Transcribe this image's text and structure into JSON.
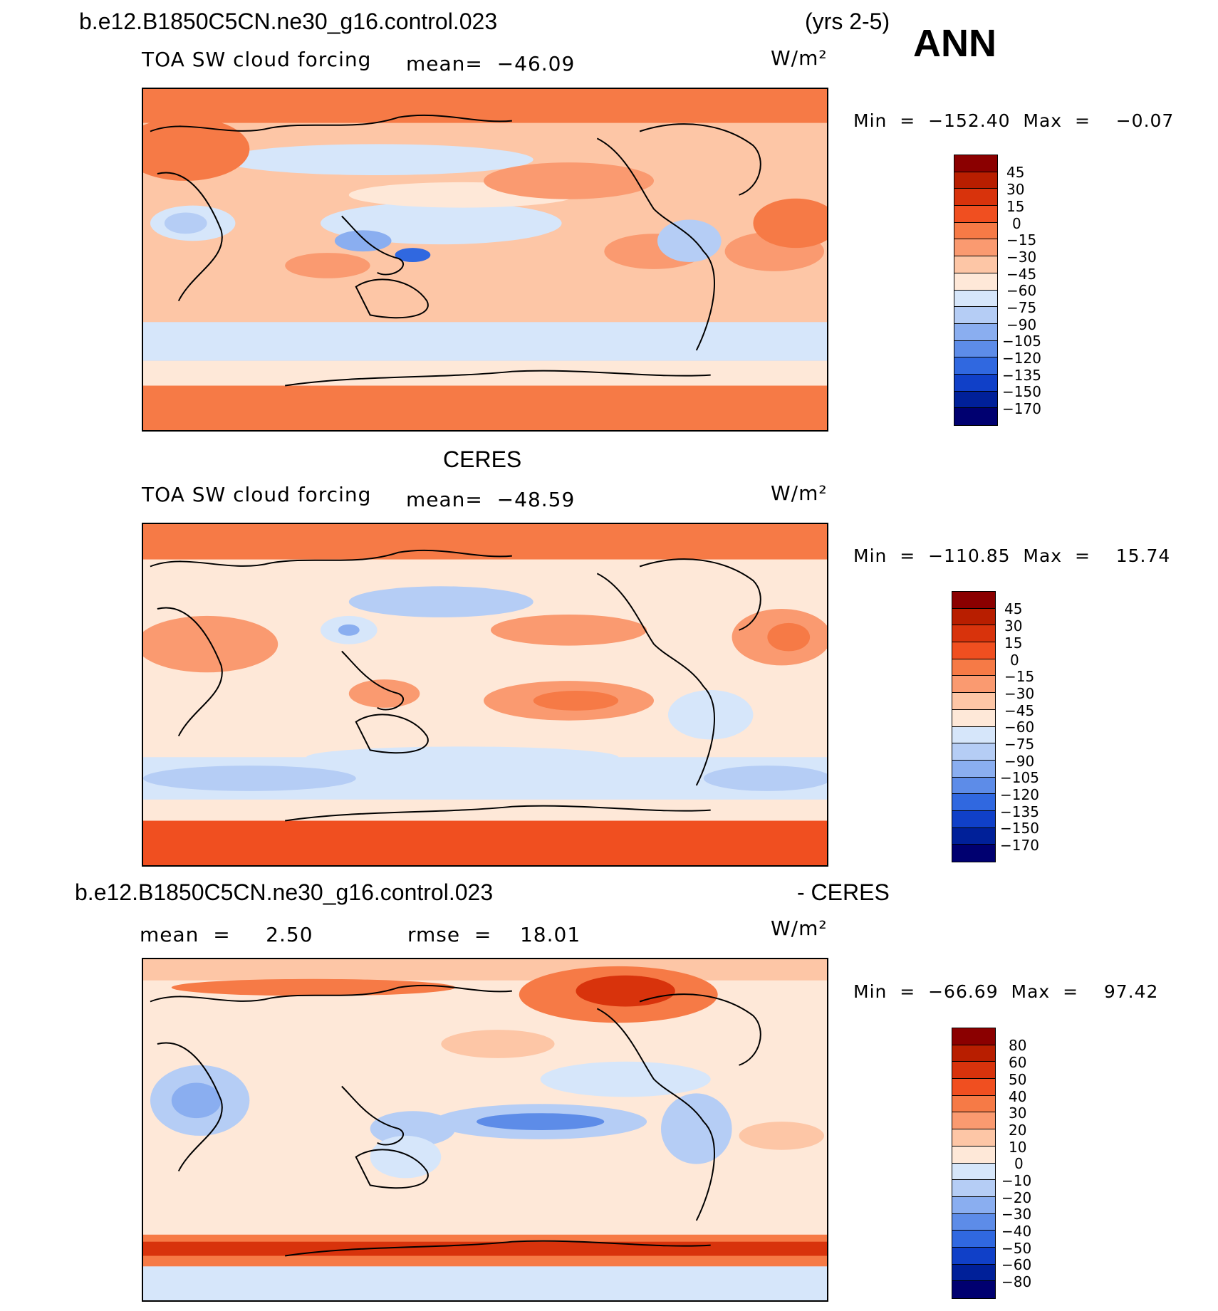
{
  "header": {
    "case_name": "b.e12.B1850C5CN.ne30_g16.control.023",
    "years": "(yrs 2-5)",
    "season": "ANN"
  },
  "panels": [
    {
      "id": "model",
      "heading": "",
      "left_label": "TOA SW cloud forcing",
      "center_label": "mean=  −46.09",
      "units": "W/m²",
      "minmax": "Min  =  −152.40  Max  =    −0.07",
      "levels": [
        "45",
        "30",
        "15",
        "0",
        "−15",
        "−30",
        "−45",
        "−60",
        "−75",
        "−90",
        "−105",
        "−120",
        "−135",
        "−150",
        "−170"
      ],
      "colors": [
        "#8b0000",
        "#b81e00",
        "#d8330c",
        "#f04f20",
        "#f67a46",
        "#fa9a70",
        "#fdc6a6",
        "#fee8d8",
        "#d6e6fa",
        "#b5cdf5",
        "#8aaef0",
        "#5d8ce8",
        "#3068e0",
        "#1040c8",
        "#002099",
        "#000070"
      ]
    },
    {
      "id": "obs",
      "heading": "CERES",
      "left_label": "TOA SW cloud forcing",
      "center_label": "mean=  −48.59",
      "units": "W/m²",
      "minmax": "Min  =  −110.85  Max  =    15.74",
      "levels": [
        "45",
        "30",
        "15",
        "0",
        "−15",
        "−30",
        "−45",
        "−60",
        "−75",
        "−90",
        "−105",
        "−120",
        "−135",
        "−150",
        "−170"
      ],
      "colors": [
        "#8b0000",
        "#b81e00",
        "#d8330c",
        "#f04f20",
        "#f67a46",
        "#fa9a70",
        "#fdc6a6",
        "#fee8d8",
        "#d6e6fa",
        "#b5cdf5",
        "#8aaef0",
        "#5d8ce8",
        "#3068e0",
        "#1040c8",
        "#002099",
        "#000070"
      ]
    },
    {
      "id": "diff",
      "heading_left": "b.e12.B1850C5CN.ne30_g16.control.023",
      "heading_right": "- CERES",
      "left_label": "mean  =     2.50",
      "center_label": "rmse  =    18.01",
      "units": "W/m²",
      "minmax": "Min  =  −66.69  Max  =    97.42",
      "levels": [
        "80",
        "60",
        "50",
        "40",
        "30",
        "20",
        "10",
        "0",
        "−10",
        "−20",
        "−30",
        "−40",
        "−50",
        "−60",
        "−80"
      ],
      "colors": [
        "#8b0000",
        "#b81e00",
        "#d8330c",
        "#f04f20",
        "#f67a46",
        "#fa9a70",
        "#fdc6a6",
        "#fee8d8",
        "#d6e6fa",
        "#b5cdf5",
        "#8aaef0",
        "#5d8ce8",
        "#3068e0",
        "#1040c8",
        "#002099",
        "#000070"
      ]
    }
  ]
}
